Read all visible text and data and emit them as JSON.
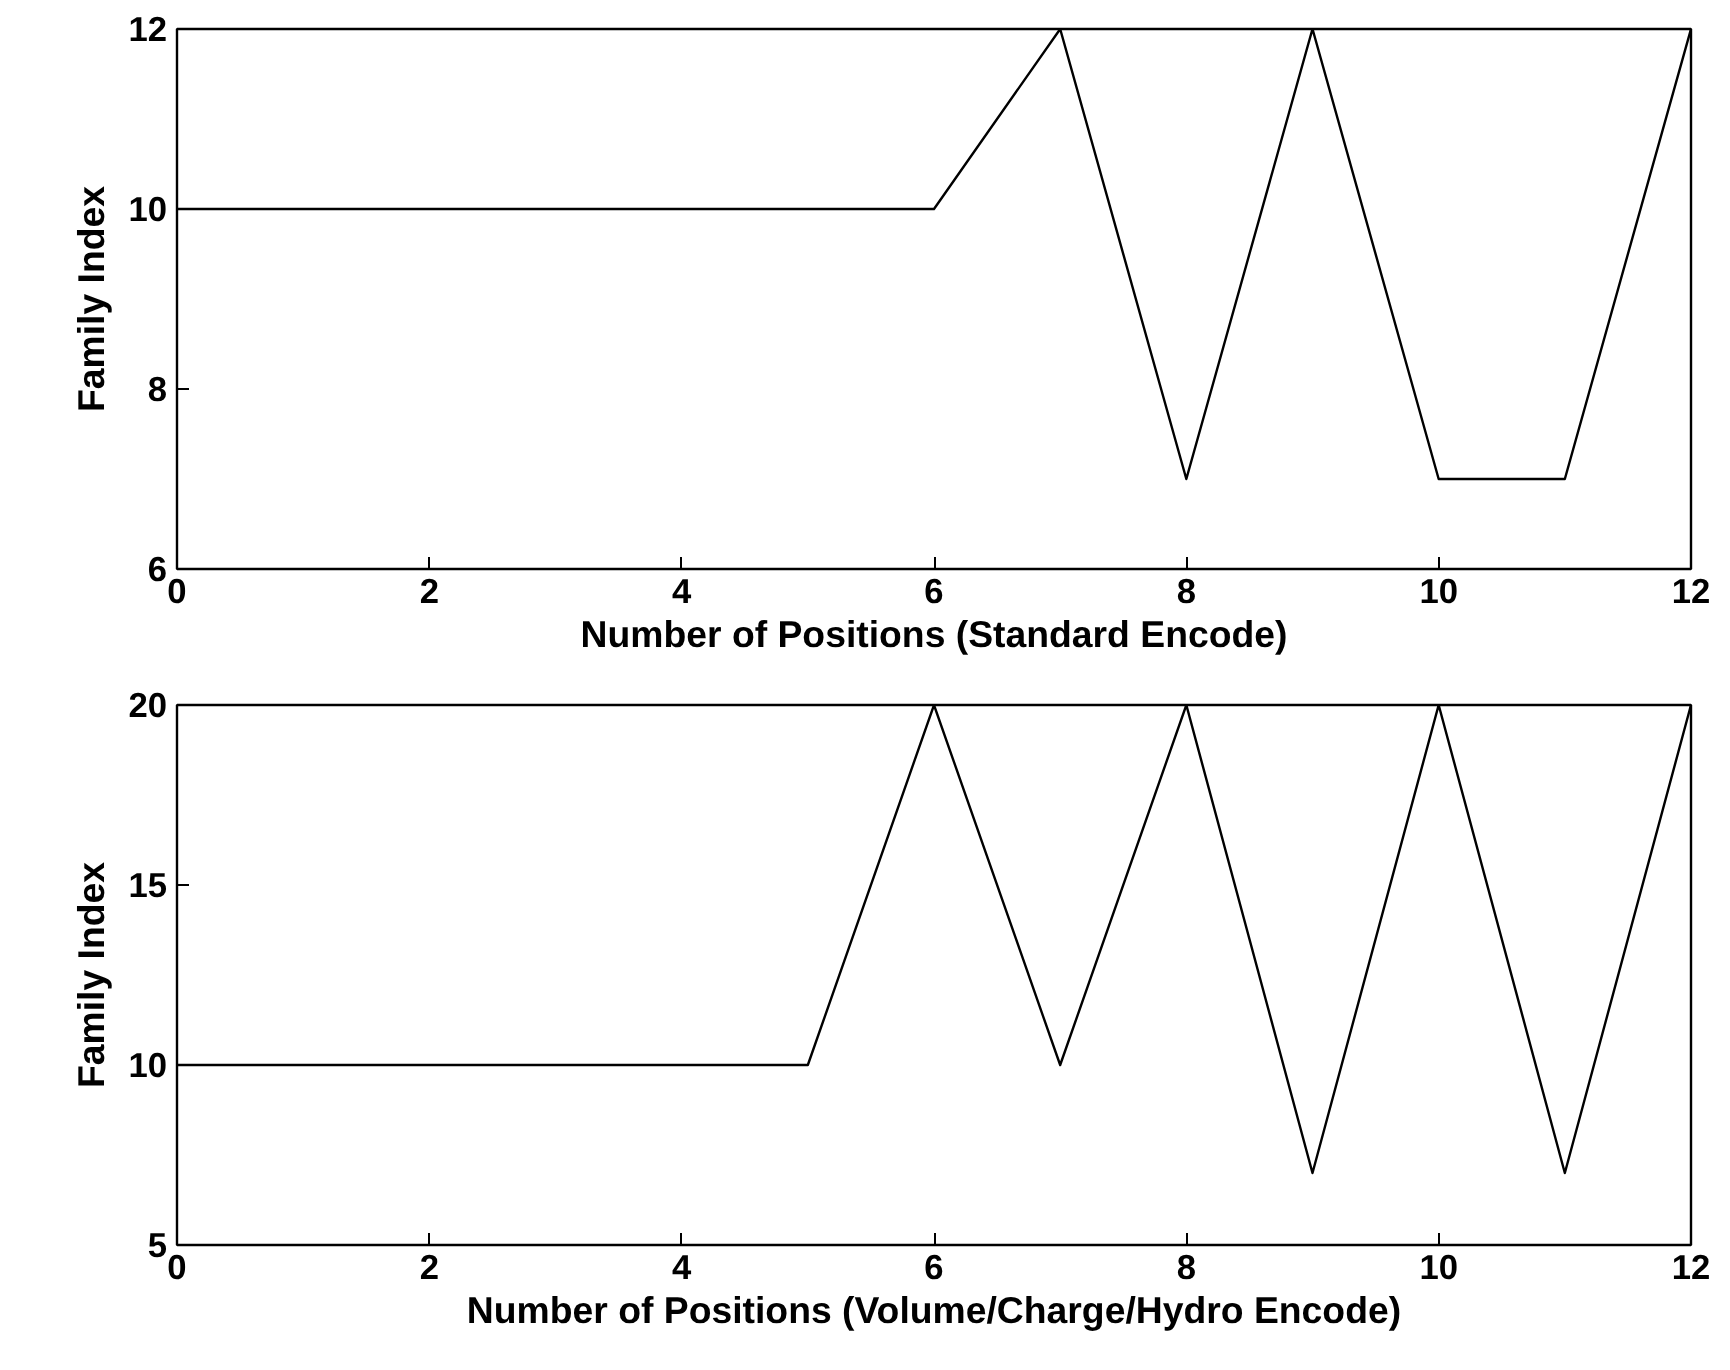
{
  "chart_data": [
    {
      "type": "line",
      "xlabel": "Number of Positions (Standard Encode)",
      "ylabel": "Family Index",
      "x": [
        0,
        1,
        2,
        3,
        4,
        5,
        6,
        7,
        8,
        9,
        10,
        11,
        12
      ],
      "series": [
        {
          "color": "#000000",
          "values": [
            10,
            10,
            10,
            10,
            10,
            10,
            10,
            12,
            7,
            12,
            7,
            7,
            12
          ]
        }
      ],
      "xlim": [
        0,
        12
      ],
      "xticks": [
        0,
        2,
        4,
        6,
        8,
        10,
        12
      ],
      "ylim": [
        6,
        12
      ],
      "yticks": [
        6,
        8,
        10,
        12
      ],
      "grid": false
    },
    {
      "type": "line",
      "xlabel": "Number of Positions (Volume/Charge/Hydro Encode)",
      "ylabel": "Family Index",
      "x": [
        0,
        1,
        2,
        3,
        4,
        5,
        6,
        7,
        8,
        9,
        10,
        11,
        12
      ],
      "series": [
        {
          "color": "#000000",
          "values": [
            10,
            10,
            10,
            10,
            10,
            10,
            20,
            10,
            20,
            7,
            20,
            7,
            20
          ]
        }
      ],
      "xlim": [
        0,
        12
      ],
      "xticks": [
        0,
        2,
        4,
        6,
        8,
        10,
        12
      ],
      "ylim": [
        5,
        20
      ],
      "yticks": [
        5,
        10,
        15,
        20
      ],
      "grid": false
    }
  ]
}
